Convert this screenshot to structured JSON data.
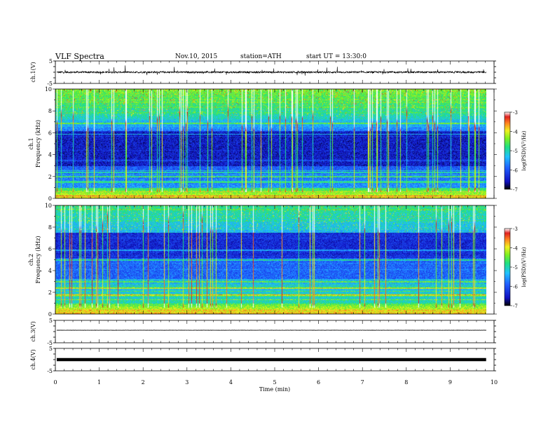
{
  "header": {
    "title": "VLF Spectra",
    "date": "Nov.10, 2015",
    "station": "station=ATH",
    "start": "start UT = 13:30:0"
  },
  "chart_data": {
    "type": "heatmap",
    "xlabel": "Time (min)",
    "xlim": [
      0,
      10
    ],
    "x_ticks": [
      "0",
      "1",
      "2",
      "3",
      "4",
      "5",
      "6",
      "7",
      "8",
      "9",
      "10"
    ],
    "panels": [
      {
        "id": "ch1-wave",
        "type": "line",
        "ylabel": "ch.1(V)",
        "ylim": [
          -5,
          5
        ],
        "y_ticks": [
          "5",
          "-5"
        ],
        "baseline": 0,
        "noise_amplitude": 0.4,
        "spike_amplitude": 2.2
      },
      {
        "id": "ch1-spec",
        "type": "heatmap",
        "ylabel_top": "ch.1",
        "ylabel": "Frequency (kHz)",
        "ylim": [
          0,
          10
        ],
        "y_ticks": [
          "0",
          "2",
          "4",
          "6",
          "8",
          "10"
        ],
        "colorbar": {
          "label": "log(PSD)(V²/Hz)",
          "range": [
            -7,
            -3
          ],
          "ticks": [
            "-3",
            "-4",
            "-5",
            "-6",
            "-7"
          ]
        }
      },
      {
        "id": "ch2-spec",
        "type": "heatmap",
        "ylabel_top": "ch.2",
        "ylabel": "Frequency (kHz)",
        "ylim": [
          0,
          10
        ],
        "y_ticks": [
          "0",
          "2",
          "4",
          "6",
          "8",
          "10"
        ],
        "colorbar": {
          "label": "log(PSD)(V²/Hz)",
          "range": [
            -7,
            -3
          ],
          "ticks": [
            "-3",
            "-4",
            "-5",
            "-6",
            "-7"
          ]
        }
      },
      {
        "id": "ch3-wave",
        "type": "line",
        "ylabel": "ch.3(V)",
        "ylim": [
          -5,
          5
        ],
        "y_ticks": [
          "5",
          "-5"
        ],
        "baseline": 0.6,
        "noise_amplitude": 0.05,
        "spike_amplitude": 0
      },
      {
        "id": "ch4-wave",
        "type": "line",
        "ylabel": "ch.4(V)",
        "ylim": [
          -5,
          5
        ],
        "y_ticks": [
          "5",
          "-5"
        ],
        "baseline": 0,
        "noise_amplitude": 0.15,
        "spike_amplitude": 0
      }
    ],
    "data_end_min": 9.82
  }
}
